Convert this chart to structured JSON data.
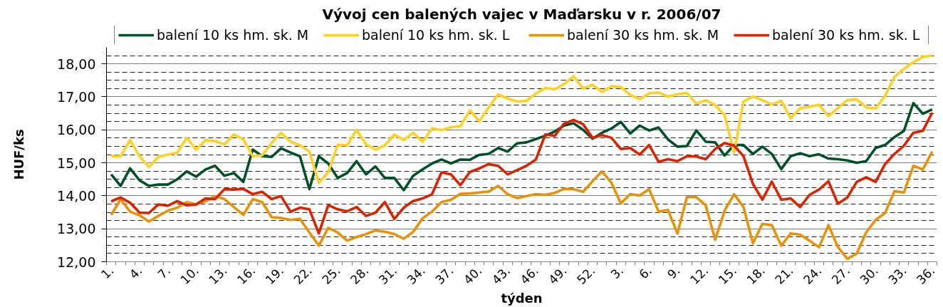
{
  "chart_data": {
    "type": "line",
    "title": "Vývoj cen balených vajec v Maďarsku v r. 2006/07",
    "xlabel": "týden",
    "ylabel": "HUF/ks",
    "categories": [
      "1.",
      null,
      null,
      "4.",
      null,
      null,
      "7.",
      null,
      null,
      "10.",
      null,
      null,
      "13.",
      null,
      null,
      "16.",
      null,
      null,
      "19.",
      null,
      null,
      "22.",
      null,
      null,
      "25.",
      null,
      null,
      "28.",
      null,
      null,
      "31.",
      null,
      null,
      "34.",
      null,
      null,
      "37.",
      null,
      null,
      "40.",
      null,
      null,
      "43.",
      null,
      null,
      "46.",
      null,
      null,
      "49.",
      null,
      null,
      "52.",
      null,
      null,
      "3.",
      null,
      null,
      "6.",
      null,
      null,
      "9.",
      null,
      null,
      "12.",
      null,
      null,
      "15.",
      null,
      null,
      "18.",
      null,
      null,
      "21.",
      null,
      null,
      "24.",
      null,
      null,
      "27.",
      null,
      null,
      "30.",
      null,
      null,
      "33.",
      null,
      null,
      "36."
    ],
    "series": [
      {
        "name": "balení 10 ks hm. sk. M",
        "color": "#00502a",
        "values": [
          14.65,
          14.3,
          14.83,
          14.47,
          14.3,
          14.34,
          14.34,
          14.5,
          14.74,
          14.58,
          14.8,
          14.91,
          14.61,
          14.69,
          14.42,
          15.4,
          15.2,
          15.18,
          15.44,
          15.31,
          15.2,
          14.2,
          15.2,
          14.98,
          14.54,
          14.69,
          15.05,
          14.65,
          14.89,
          14.54,
          14.54,
          14.17,
          14.61,
          14.8,
          14.98,
          15.1,
          14.98,
          15.1,
          15.09,
          15.24,
          15.27,
          15.45,
          15.34,
          15.59,
          15.62,
          15.72,
          15.82,
          15.95,
          16.13,
          16.2,
          16.0,
          15.73,
          15.91,
          16.04,
          16.24,
          15.89,
          16.13,
          15.98,
          16.07,
          15.71,
          15.49,
          15.51,
          15.98,
          15.64,
          15.62,
          15.22,
          15.54,
          15.54,
          15.27,
          15.49,
          15.27,
          14.81,
          15.2,
          15.29,
          15.2,
          15.26,
          15.13,
          15.11,
          15.07,
          15.0,
          15.05,
          15.45,
          15.54,
          15.78,
          15.97,
          16.81,
          16.49,
          16.62
        ]
      },
      {
        "name": "balení 10 ks hm. sk. L",
        "color": "#ffd21f",
        "values": [
          15.2,
          15.2,
          15.69,
          15.2,
          14.87,
          15.18,
          15.25,
          15.31,
          15.76,
          15.4,
          15.69,
          15.66,
          15.56,
          15.86,
          15.71,
          15.2,
          15.23,
          15.6,
          15.91,
          15.64,
          15.53,
          15.34,
          14.39,
          14.72,
          15.55,
          15.53,
          16.0,
          15.56,
          15.4,
          15.53,
          15.86,
          15.69,
          15.91,
          15.64,
          16.05,
          15.99,
          16.08,
          16.11,
          16.59,
          16.26,
          16.68,
          17.08,
          16.95,
          16.86,
          16.88,
          17.1,
          17.27,
          17.23,
          17.39,
          17.63,
          17.25,
          17.37,
          17.15,
          17.32,
          17.3,
          17.06,
          16.93,
          17.11,
          17.13,
          17.01,
          17.08,
          17.12,
          16.79,
          16.9,
          16.75,
          16.44,
          15.31,
          16.86,
          17.01,
          16.9,
          16.77,
          16.88,
          16.35,
          16.66,
          16.7,
          16.76,
          16.42,
          16.66,
          16.9,
          16.92,
          16.68,
          16.65,
          17.03,
          17.61,
          17.85,
          18.05,
          18.21,
          18.25
        ]
      },
      {
        "name": "balení 30 ks hm. sk. M",
        "color": "#e8920a",
        "values": [
          13.42,
          13.9,
          13.52,
          13.41,
          13.22,
          13.39,
          13.55,
          13.64,
          13.81,
          13.74,
          13.84,
          13.99,
          13.9,
          13.66,
          13.42,
          13.9,
          13.81,
          13.35,
          13.33,
          13.27,
          13.3,
          12.89,
          12.49,
          13.03,
          12.89,
          12.64,
          12.75,
          12.84,
          12.95,
          12.91,
          12.84,
          12.7,
          12.91,
          13.32,
          13.52,
          13.81,
          13.88,
          14.06,
          14.07,
          14.1,
          14.13,
          14.3,
          14.05,
          13.93,
          13.99,
          14.05,
          14.03,
          14.09,
          14.21,
          14.2,
          14.12,
          14.44,
          14.74,
          14.4,
          13.77,
          14.05,
          14.01,
          14.2,
          13.52,
          13.57,
          12.86,
          13.96,
          13.96,
          13.71,
          12.67,
          13.55,
          14.05,
          13.66,
          12.56,
          13.15,
          13.11,
          12.49,
          12.86,
          12.82,
          12.64,
          12.44,
          13.11,
          12.45,
          12.09,
          12.25,
          12.89,
          13.27,
          13.48,
          14.14,
          14.1,
          14.91,
          14.8,
          15.34
        ]
      },
      {
        "name": "balení 30 ks hm. sk. L",
        "color": "#dd2200",
        "values": [
          13.83,
          13.95,
          13.79,
          13.49,
          13.48,
          13.74,
          13.7,
          13.84,
          13.71,
          13.74,
          13.92,
          13.9,
          14.2,
          14.19,
          14.21,
          14.05,
          14.12,
          13.9,
          13.99,
          13.52,
          13.64,
          13.59,
          12.86,
          13.72,
          13.59,
          13.53,
          13.66,
          13.39,
          13.49,
          13.81,
          13.3,
          13.64,
          13.84,
          13.92,
          14.05,
          14.71,
          14.65,
          14.32,
          14.72,
          14.83,
          14.96,
          14.91,
          14.65,
          14.78,
          14.91,
          15.1,
          15.86,
          15.82,
          16.19,
          16.3,
          16.17,
          15.76,
          15.84,
          15.76,
          15.42,
          15.45,
          15.25,
          15.54,
          15.03,
          15.11,
          15.05,
          15.2,
          15.19,
          15.11,
          15.42,
          15.6,
          15.52,
          15.2,
          14.36,
          13.88,
          14.43,
          13.88,
          13.92,
          13.66,
          14.03,
          14.19,
          14.44,
          13.76,
          13.95,
          14.42,
          14.56,
          14.42,
          14.96,
          15.27,
          15.52,
          15.91,
          15.97,
          16.52
        ]
      }
    ],
    "ylim": [
      12,
      18.5
    ],
    "yticks": [
      {
        "value": 12,
        "label": "12,00"
      },
      {
        "value": 13,
        "label": "13,00"
      },
      {
        "value": 14,
        "label": "14,00"
      },
      {
        "value": 15,
        "label": "15,00"
      },
      {
        "value": 16,
        "label": "16,00"
      },
      {
        "value": 17,
        "label": "17,00"
      },
      {
        "value": 18,
        "label": "18,00"
      }
    ],
    "grid": "y",
    "legend": "top",
    "line_style": "solid"
  }
}
